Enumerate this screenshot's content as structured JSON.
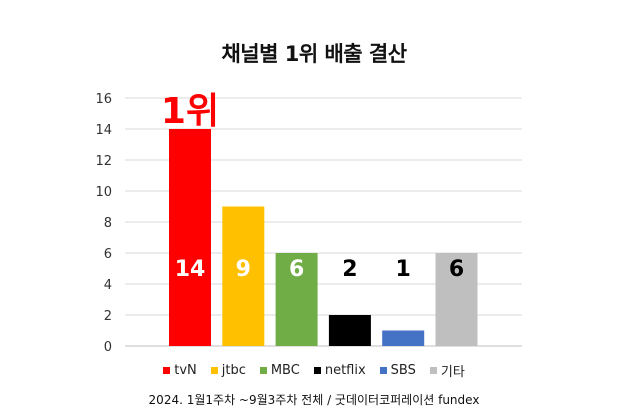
{
  "chart_data": {
    "type": "bar",
    "title": "채널별 1위 배출 결산",
    "categories": [
      "tvN",
      "jtbc",
      "MBC",
      "netflix",
      "SBS",
      "기타"
    ],
    "values": [
      14,
      9,
      6,
      2,
      1,
      6
    ],
    "colors": [
      "#ff0000",
      "#ffc000",
      "#70ad47",
      "#000000",
      "#4472c4",
      "#bfbfbf"
    ],
    "value_label_colors": [
      "#ffffff",
      "#ffffff",
      "#ffffff",
      "#000000",
      "#000000",
      "#000000"
    ],
    "yticks": [
      "0",
      "2",
      "4",
      "6",
      "8",
      "10",
      "12",
      "14",
      "16"
    ],
    "ylim": [
      0,
      16
    ],
    "grid": true,
    "legend_position": "bottom",
    "annotation": {
      "text": "1위",
      "category": "tvN",
      "color": "#ff0000"
    },
    "source": "2024. 1월1주차 ~9월3주차 전체 / 굿데이터코퍼레이션 fundex"
  }
}
